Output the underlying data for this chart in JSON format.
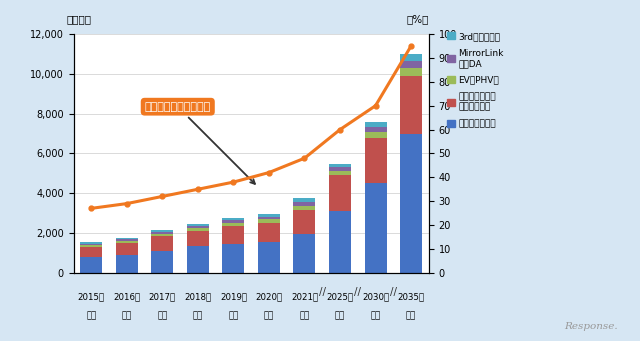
{
  "x_positions": [
    0,
    1,
    2,
    3,
    4,
    5,
    6,
    7,
    8,
    9
  ],
  "embedded": [
    800,
    900,
    1100,
    1350,
    1450,
    1550,
    1950,
    3100,
    4500,
    7000
  ],
  "mobile": [
    500,
    600,
    750,
    750,
    900,
    950,
    1200,
    1800,
    2300,
    2900
  ],
  "ev_phv": [
    80,
    90,
    120,
    130,
    160,
    180,
    220,
    220,
    280,
    380
  ],
  "mirrorlink": [
    80,
    90,
    100,
    110,
    130,
    140,
    180,
    180,
    250,
    350
  ],
  "third_party": [
    80,
    80,
    100,
    120,
    130,
    160,
    200,
    180,
    250,
    380
  ],
  "connected_rate": [
    27,
    29,
    32,
    35,
    38,
    42,
    48,
    60,
    70,
    95
  ],
  "bar_colors": {
    "embedded": "#4472C4",
    "mobile": "#C0504D",
    "ev_phv": "#9BBB59",
    "mirrorlink": "#8064A2",
    "third_party": "#4BACC6"
  },
  "line_color": "#F07820",
  "background_color": "#D6E6F3",
  "plot_bg_color": "#FFFFFF",
  "ylim_left": [
    0,
    12000
  ],
  "ylim_right": [
    0,
    100
  ],
  "ylabel_left": "（億円）",
  "ylabel_right": "（%）",
  "annotation_text": "コネクテッドカー比率",
  "annotation_box_color": "#F07820",
  "annotation_text_color": "#FFFFFF",
  "year_labels": [
    "2015年",
    "2016年",
    "2017年",
    "2018年",
    "2019年",
    "2020年",
    "2021年",
    "2025年",
    "2030年",
    "2035年"
  ],
  "sub_labels": [
    "見込",
    "予測",
    "予測",
    "予測",
    "予測",
    "予測",
    "予測",
    "予測",
    "予測",
    "予測"
  ],
  "legend_labels": [
    "3rdパーティー",
    "MirrorLink\n対応DA",
    "EV／PHV型",
    "モバイル連携／\nテザリング型",
    "エンベデッド型"
  ],
  "legend_colors": [
    "#4BACC6",
    "#8064A2",
    "#9BBB59",
    "#C0504D",
    "#4472C4"
  ],
  "yticks_left": [
    0,
    2000,
    4000,
    6000,
    8000,
    10000,
    12000
  ],
  "yticks_right": [
    0,
    10,
    20,
    30,
    40,
    50,
    60,
    70,
    80,
    90,
    100
  ]
}
